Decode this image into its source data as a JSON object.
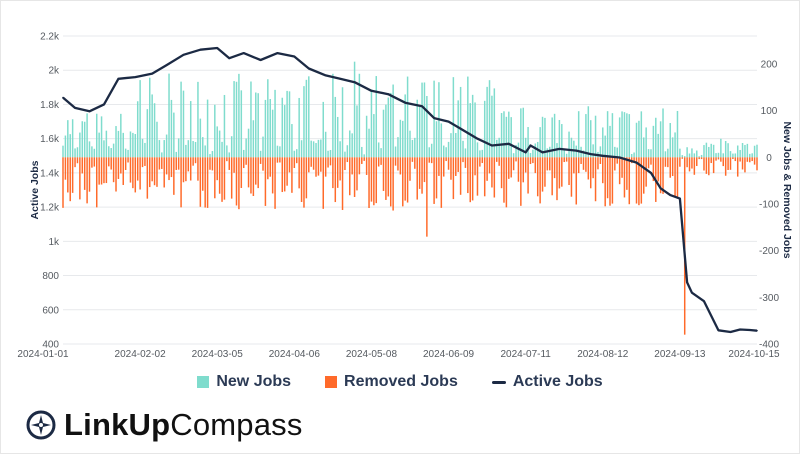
{
  "chart_data": {
    "type": "bar+line",
    "x_tick_labels": [
      "2024-01-01",
      "2024-02-02",
      "2024-03-05",
      "2024-04-06",
      "2024-05-08",
      "2024-06-09",
      "2024-07-11",
      "2024-08-12",
      "2024-09-13",
      "2024-10-15"
    ],
    "x_range": [
      "2024-01-01",
      "2024-10-15"
    ],
    "left_axis": {
      "title": "Active Jobs",
      "ylim": [
        400,
        2200
      ],
      "tick_values": [
        400,
        600,
        800,
        1000,
        1200,
        1400,
        1600,
        1800,
        2000,
        2200
      ],
      "tick_labels": [
        "400",
        "600",
        "800",
        "1k",
        "1.2k",
        "1.4k",
        "1.6k",
        "1.8k",
        "2k",
        "2.2k"
      ]
    },
    "right_axis": {
      "title": "New Jobs & Removed Jobs",
      "ylim": [
        -400,
        260
      ],
      "tick_values": [
        -400,
        -300,
        -200,
        -100,
        0,
        100,
        200
      ],
      "tick_labels": [
        "-400",
        "-300",
        "-200",
        "-100",
        "0",
        "100",
        "200"
      ]
    },
    "grid": true,
    "legend_position": "bottom-center",
    "series": [
      {
        "name": "New Jobs",
        "axis": "right",
        "kind": "bar",
        "color": "#7fdccd",
        "approx_daily_values": {
          "Jan": [
            20,
            110
          ],
          "Feb-Jun": [
            40,
            200
          ],
          "Jul-Sep": [
            20,
            120
          ],
          "Sep 13 to Oct 15": [
            0,
            40
          ]
        },
        "peak": {
          "date": "2024-05-01",
          "value": 205
        }
      },
      {
        "name": "Removed Jobs",
        "axis": "right",
        "kind": "bar",
        "color": "#ff6a2a",
        "approx_daily_values": {
          "Jan-Aug": [
            -120,
            -30
          ],
          "Sep 13 to Oct 15": [
            -40,
            -5
          ]
        },
        "extremes": [
          {
            "date": "2024-05-31",
            "value": -170
          },
          {
            "date": "2024-09-15",
            "value": -380
          }
        ]
      },
      {
        "name": "Active Jobs",
        "axis": "left",
        "kind": "line",
        "color": "#1c2a44",
        "points": [
          [
            "2024-01-01",
            1840
          ],
          [
            "2024-01-06",
            1780
          ],
          [
            "2024-01-12",
            1760
          ],
          [
            "2024-01-18",
            1800
          ],
          [
            "2024-01-24",
            1950
          ],
          [
            "2024-01-31",
            1960
          ],
          [
            "2024-02-07",
            1980
          ],
          [
            "2024-02-13",
            2030
          ],
          [
            "2024-02-20",
            2090
          ],
          [
            "2024-02-27",
            2120
          ],
          [
            "2024-03-05",
            2130
          ],
          [
            "2024-03-10",
            2070
          ],
          [
            "2024-03-16",
            2100
          ],
          [
            "2024-03-23",
            2060
          ],
          [
            "2024-03-30",
            2100
          ],
          [
            "2024-04-06",
            2080
          ],
          [
            "2024-04-12",
            2010
          ],
          [
            "2024-04-19",
            1970
          ],
          [
            "2024-04-25",
            1950
          ],
          [
            "2024-05-01",
            1930
          ],
          [
            "2024-05-08",
            1880
          ],
          [
            "2024-05-15",
            1860
          ],
          [
            "2024-05-22",
            1810
          ],
          [
            "2024-05-29",
            1790
          ],
          [
            "2024-06-03",
            1720
          ],
          [
            "2024-06-09",
            1700
          ],
          [
            "2024-06-15",
            1650
          ],
          [
            "2024-06-21",
            1600
          ],
          [
            "2024-06-27",
            1560
          ],
          [
            "2024-07-04",
            1570
          ],
          [
            "2024-07-11",
            1520
          ],
          [
            "2024-07-13",
            1560
          ],
          [
            "2024-07-18",
            1520
          ],
          [
            "2024-07-25",
            1540
          ],
          [
            "2024-08-01",
            1530
          ],
          [
            "2024-08-07",
            1510
          ],
          [
            "2024-08-12",
            1500
          ],
          [
            "2024-08-19",
            1490
          ],
          [
            "2024-08-26",
            1460
          ],
          [
            "2024-09-01",
            1400
          ],
          [
            "2024-09-05",
            1310
          ],
          [
            "2024-09-09",
            1270
          ],
          [
            "2024-09-13",
            1250
          ],
          [
            "2024-09-16",
            760
          ],
          [
            "2024-09-18",
            700
          ],
          [
            "2024-09-23",
            650
          ],
          [
            "2024-09-29",
            480
          ],
          [
            "2024-10-04",
            470
          ],
          [
            "2024-10-08",
            485
          ],
          [
            "2024-10-12",
            482
          ],
          [
            "2024-10-15",
            478
          ]
        ]
      }
    ]
  },
  "legend": [
    {
      "key": "new",
      "label": "New Jobs",
      "color": "#7fdccd"
    },
    {
      "key": "removed",
      "label": "Removed Jobs",
      "color": "#ff6a2a"
    },
    {
      "key": "active",
      "label": "Active Jobs",
      "color": "#1c2a44"
    }
  ],
  "brand": {
    "name_bold": "LinkUp",
    "name_light": "Compass",
    "icon": "compass-icon",
    "color": "#1c2a44"
  }
}
